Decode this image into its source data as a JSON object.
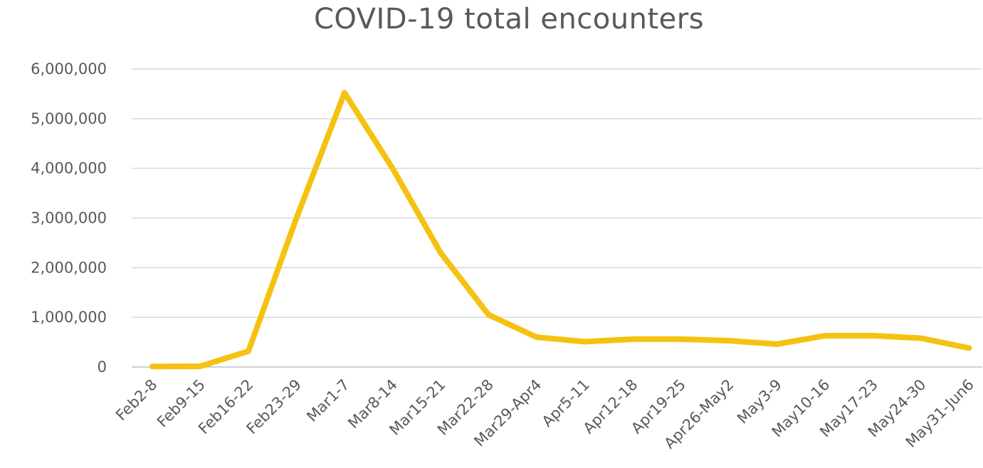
{
  "chart_data": {
    "type": "line",
    "title": "COVID-19 total encounters",
    "xlabel": "",
    "ylabel": "",
    "categories": [
      "Feb2-8",
      "Feb9-15",
      "Feb16-22",
      "Feb23-29",
      "Mar1-7",
      "Mar8-14",
      "Mar15-21",
      "Mar22-28",
      "Mar29-Apr4",
      "Apr5-11",
      "Apr12-18",
      "Apr19-25",
      "Apr26-May2",
      "May3-9",
      "May10-16",
      "May17-23",
      "May24-30",
      "May31-Jun6"
    ],
    "series": [
      {
        "values": [
          10000,
          15000,
          320000,
          3000000,
          5520000,
          4000000,
          2300000,
          1050000,
          600000,
          510000,
          560000,
          560000,
          530000,
          460000,
          630000,
          630000,
          580000,
          380000
        ]
      }
    ],
    "ylim": [
      0,
      6000000
    ],
    "yticks": [
      "0",
      "1,000,000",
      "2,000,000",
      "3,000,000",
      "4,000,000",
      "5,000,000",
      "6,000,000"
    ],
    "grid": true,
    "colors": {
      "line": "#f5c211",
      "grid": "#d9d9d9",
      "text": "#595959"
    }
  }
}
